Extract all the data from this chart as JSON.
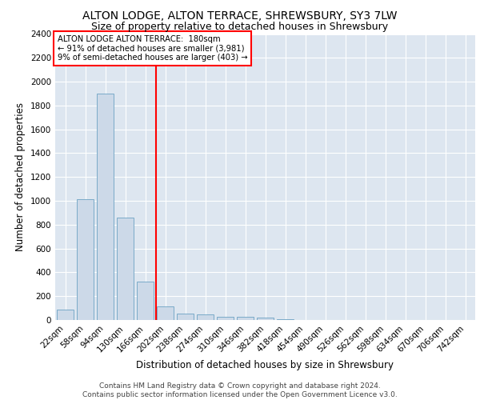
{
  "title1": "ALTON LODGE, ALTON TERRACE, SHREWSBURY, SY3 7LW",
  "title2": "Size of property relative to detached houses in Shrewsbury",
  "xlabel": "Distribution of detached houses by size in Shrewsbury",
  "ylabel": "Number of detached properties",
  "footnote": "Contains HM Land Registry data © Crown copyright and database right 2024.\nContains public sector information licensed under the Open Government Licence v3.0.",
  "categories": [
    "22sqm",
    "58sqm",
    "94sqm",
    "130sqm",
    "166sqm",
    "202sqm",
    "238sqm",
    "274sqm",
    "310sqm",
    "346sqm",
    "382sqm",
    "418sqm",
    "454sqm",
    "490sqm",
    "526sqm",
    "562sqm",
    "598sqm",
    "634sqm",
    "670sqm",
    "706sqm",
    "742sqm"
  ],
  "values": [
    90,
    1015,
    1900,
    860,
    320,
    115,
    55,
    45,
    30,
    25,
    20,
    5,
    3,
    2,
    1,
    1,
    0,
    0,
    0,
    0,
    0
  ],
  "bar_color": "#ccd9e8",
  "bar_edge_color": "#7aaac8",
  "red_line_x": 4.55,
  "annotation_line1": "ALTON LODGE ALTON TERRACE:  180sqm",
  "annotation_line2": "← 91% of detached houses are smaller (3,981)",
  "annotation_line3": "9% of semi-detached houses are larger (403) →",
  "ylim": [
    0,
    2400
  ],
  "yticks": [
    0,
    200,
    400,
    600,
    800,
    1000,
    1200,
    1400,
    1600,
    1800,
    2000,
    2200,
    2400
  ],
  "bg_color": "#dde6f0",
  "grid_color": "#ffffff",
  "title_fontsize": 10,
  "subtitle_fontsize": 9,
  "axis_label_fontsize": 8.5,
  "tick_fontsize": 7.5,
  "footnote_fontsize": 6.5
}
